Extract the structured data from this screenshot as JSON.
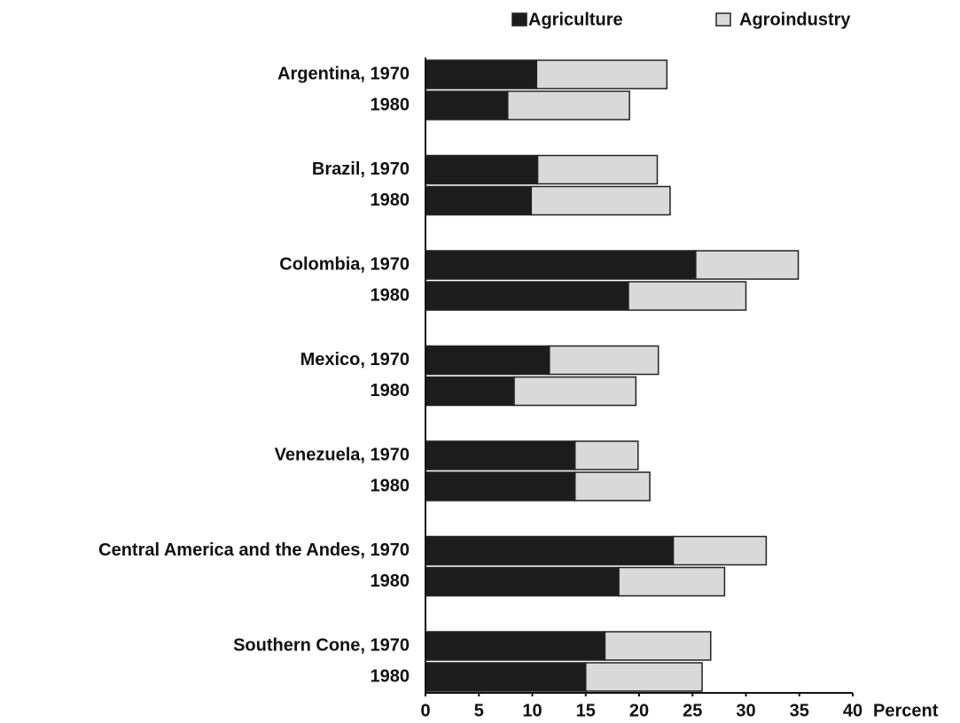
{
  "chart_data": {
    "type": "stacked-barh",
    "categories": [
      "Argentina, 1970",
      "1980",
      "Brazil, 1970",
      "1980",
      "Colombia, 1970",
      "1980",
      "Mexico, 1970",
      "1980",
      "Venezuela, 1970",
      "1980",
      "Central America and the Andes, 1970",
      "1980",
      "Southern Cone, 1970",
      "1980"
    ],
    "series": [
      {
        "name": "Agriculture",
        "color": "#1c1c1c",
        "values": [
          10.4,
          7.7,
          10.5,
          9.9,
          25.3,
          19.0,
          11.6,
          8.3,
          14.0,
          14.0,
          23.2,
          18.1,
          16.8,
          15.0
        ]
      },
      {
        "name": "Agroindustry",
        "color": "#d9d9d9",
        "values": [
          12.2,
          11.4,
          11.2,
          13.0,
          9.6,
          11.0,
          10.2,
          11.4,
          5.9,
          7.0,
          8.7,
          9.9,
          9.9,
          10.9
        ]
      }
    ],
    "xlabel": "Percent",
    "xlim": [
      0,
      40
    ],
    "xticks": [
      0,
      5,
      10,
      15,
      20,
      25,
      30,
      35,
      40
    ]
  }
}
